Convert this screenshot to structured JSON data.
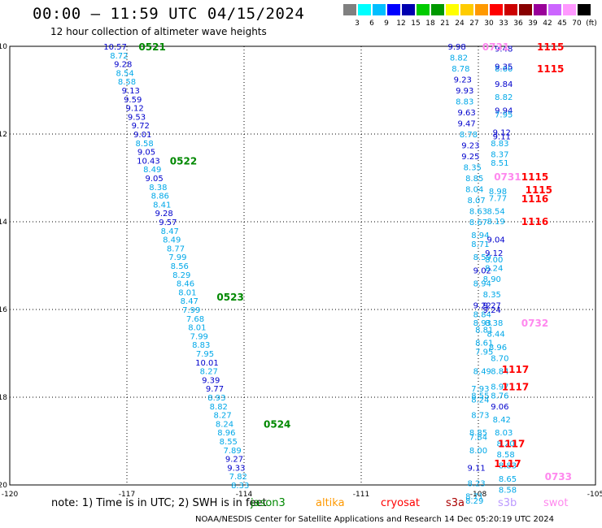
{
  "title": "00:00 – 11:59 UTC 04/15/2024",
  "subtitle": "12 hour collection of altimeter wave heights",
  "colorbar": {
    "colors": [
      "#808080",
      "#00ffff",
      "#00bfff",
      "#0000ff",
      "#0000b0",
      "#00cc00",
      "#009900",
      "#ffff00",
      "#ffcc00",
      "#ff9900",
      "#ff0000",
      "#cc0000",
      "#880000",
      "#990099",
      "#cc66ff",
      "#ff99ff",
      "#000000"
    ],
    "labels": [
      "3",
      "6",
      "9",
      "12",
      "15",
      "18",
      "21",
      "24",
      "27",
      "30",
      "33",
      "36",
      "39",
      "42",
      "45",
      "70",
      "(ft)"
    ]
  },
  "note": "note: 1) Time is in UTC; 2) SWH is in feet",
  "legend": [
    {
      "name": "jason3",
      "color": "#008800"
    },
    {
      "name": "altika",
      "color": "#ff9900"
    },
    {
      "name": "cryosat",
      "color": "#ff0000"
    },
    {
      "name": "s3a",
      "color": "#aa0000"
    },
    {
      "name": "s3b",
      "color": "#bb99ff"
    },
    {
      "name": "swot",
      "color": "#ff88ee"
    }
  ],
  "footer": "NOAA/NESDIS Center for Satellite Applications and Research    14 Dec 05:20:19 UTC 2024",
  "chart_data": {
    "type": "scatter",
    "xlabel": "",
    "ylabel": "",
    "xlim": [
      -120,
      -105
    ],
    "ylim": [
      -20,
      -10
    ],
    "x_ticks": [
      -120,
      -117,
      -114,
      -111,
      -108,
      -105
    ],
    "y_ticks": [
      -10,
      -12,
      -14,
      -16,
      -18,
      -20
    ],
    "x_tick_labels": [
      "-120",
      "-117",
      "-114",
      "-111",
      "-108",
      "-105"
    ],
    "y_tick_labels": [
      "-10",
      "-12",
      "-14",
      "-16",
      "-18",
      "-20"
    ],
    "grid": true,
    "passes": [
      {
        "label": "0521",
        "x": -116.7,
        "y": -10.0,
        "color": "#008800"
      },
      {
        "label": "0522",
        "x": -115.9,
        "y": -12.6,
        "color": "#008800"
      },
      {
        "label": "0523",
        "x": -114.7,
        "y": -15.7,
        "color": "#008800"
      },
      {
        "label": "0524",
        "x": -113.5,
        "y": -18.6,
        "color": "#008800"
      },
      {
        "label": "0731",
        "x": -107.9,
        "y": -10.0,
        "color": "#ff88ee"
      },
      {
        "label": "1115",
        "x": -106.5,
        "y": -10.0,
        "color": "#ff0000"
      },
      {
        "label": "1115",
        "x": -106.5,
        "y": -10.5,
        "color": "#ff0000"
      },
      {
        "label": "0731",
        "x": -107.6,
        "y": -12.96,
        "color": "#ff88ee"
      },
      {
        "label": "1115",
        "x": -106.9,
        "y": -12.96,
        "color": "#ff0000"
      },
      {
        "label": "1115",
        "x": -106.8,
        "y": -13.26,
        "color": "#ff0000"
      },
      {
        "label": "1116",
        "x": -106.9,
        "y": -13.46,
        "color": "#ff0000"
      },
      {
        "label": "1116",
        "x": -106.9,
        "y": -13.98,
        "color": "#ff0000"
      },
      {
        "label": "0732",
        "x": -106.9,
        "y": -16.3,
        "color": "#ff88ee"
      },
      {
        "label": "1117",
        "x": -107.4,
        "y": -17.35,
        "color": "#ff0000"
      },
      {
        "label": "1117",
        "x": -107.4,
        "y": -17.75,
        "color": "#ff0000"
      },
      {
        "label": "1117",
        "x": -107.5,
        "y": -19.05,
        "color": "#ff0000"
      },
      {
        "label": "1117",
        "x": -107.6,
        "y": -19.5,
        "color": "#ff0000"
      },
      {
        "label": "0733",
        "x": -106.3,
        "y": -19.8,
        "color": "#ff88ee"
      }
    ],
    "series": [
      {
        "name": "jason3",
        "points": [
          {
            "x": -117.3,
            "y": -10.0,
            "v": "10.57"
          },
          {
            "x": -117.2,
            "y": -10.2,
            "v": "8.72"
          },
          {
            "x": -117.1,
            "y": -10.4,
            "v": "9.28"
          },
          {
            "x": -117.05,
            "y": -10.6,
            "v": "8.54"
          },
          {
            "x": -117.0,
            "y": -10.8,
            "v": "8.58"
          },
          {
            "x": -116.9,
            "y": -11.0,
            "v": "9.13"
          },
          {
            "x": -116.85,
            "y": -11.2,
            "v": "9.59"
          },
          {
            "x": -116.8,
            "y": -11.4,
            "v": "9.12"
          },
          {
            "x": -116.75,
            "y": -11.6,
            "v": "9.53"
          },
          {
            "x": -116.65,
            "y": -11.8,
            "v": "9.72"
          },
          {
            "x": -116.6,
            "y": -12.0,
            "v": "9.01"
          },
          {
            "x": -116.55,
            "y": -12.2,
            "v": "8.58"
          },
          {
            "x": -116.5,
            "y": -12.4,
            "v": "9.05"
          },
          {
            "x": -116.45,
            "y": -12.6,
            "v": "10.43"
          },
          {
            "x": -116.35,
            "y": -12.8,
            "v": "8.49"
          },
          {
            "x": -116.3,
            "y": -13.0,
            "v": "9.05"
          },
          {
            "x": -116.2,
            "y": -13.2,
            "v": "8.38"
          },
          {
            "x": -116.15,
            "y": -13.4,
            "v": "8.86"
          },
          {
            "x": -116.1,
            "y": -13.6,
            "v": "8.41"
          },
          {
            "x": -116.05,
            "y": -13.8,
            "v": "9.28"
          },
          {
            "x": -115.95,
            "y": -14.0,
            "v": "9.57"
          },
          {
            "x": -115.9,
            "y": -14.2,
            "v": "8.47"
          },
          {
            "x": -115.85,
            "y": -14.4,
            "v": "8.49"
          },
          {
            "x": -115.75,
            "y": -14.6,
            "v": "8.77"
          },
          {
            "x": -115.7,
            "y": -14.8,
            "v": "7.99"
          },
          {
            "x": -115.65,
            "y": -15.0,
            "v": "8.56"
          },
          {
            "x": -115.6,
            "y": -15.2,
            "v": "8.29"
          },
          {
            "x": -115.5,
            "y": -15.4,
            "v": "8.46"
          },
          {
            "x": -115.45,
            "y": -15.6,
            "v": "8.01"
          },
          {
            "x": -115.4,
            "y": -15.8,
            "v": "8.47"
          },
          {
            "x": -115.35,
            "y": -16.0,
            "v": "7.99"
          },
          {
            "x": -115.25,
            "y": -16.2,
            "v": "7.68"
          },
          {
            "x": -115.2,
            "y": -16.4,
            "v": "8.01"
          },
          {
            "x": -115.15,
            "y": -16.6,
            "v": "7.99"
          },
          {
            "x": -115.1,
            "y": -16.8,
            "v": "8.83"
          },
          {
            "x": -115.0,
            "y": -17.0,
            "v": "7.95"
          },
          {
            "x": -114.95,
            "y": -17.2,
            "v": "10.01"
          },
          {
            "x": -114.9,
            "y": -17.4,
            "v": "8.27"
          },
          {
            "x": -114.85,
            "y": -17.6,
            "v": "9.39"
          },
          {
            "x": -114.75,
            "y": -17.8,
            "v": "9.77"
          },
          {
            "x": -114.7,
            "y": -18.0,
            "v": "8.93"
          },
          {
            "x": -114.65,
            "y": -18.2,
            "v": "8.82"
          },
          {
            "x": -114.55,
            "y": -18.4,
            "v": "8.27"
          },
          {
            "x": -114.5,
            "y": -18.6,
            "v": "8.24"
          },
          {
            "x": -114.45,
            "y": -18.8,
            "v": "8.96"
          },
          {
            "x": -114.4,
            "y": -19.0,
            "v": "8.55"
          },
          {
            "x": -114.3,
            "y": -19.2,
            "v": "7.89"
          },
          {
            "x": -114.25,
            "y": -19.4,
            "v": "9.27"
          },
          {
            "x": -114.2,
            "y": -19.6,
            "v": "9.33"
          },
          {
            "x": -114.15,
            "y": -19.8,
            "v": "7.82"
          },
          {
            "x": -114.1,
            "y": -20.0,
            "v": "8.33"
          }
        ]
      },
      {
        "name": "swot-left",
        "points": [
          {
            "x": -108.55,
            "y": -10.0,
            "v": "9.98"
          },
          {
            "x": -108.5,
            "y": -10.25,
            "v": "8.82"
          },
          {
            "x": -108.45,
            "y": -10.5,
            "v": "8.78"
          },
          {
            "x": -108.4,
            "y": -10.75,
            "v": "9.23"
          },
          {
            "x": -108.35,
            "y": -11.0,
            "v": "9.93"
          },
          {
            "x": -108.35,
            "y": -11.25,
            "v": "8.83"
          },
          {
            "x": -108.3,
            "y": -11.5,
            "v": "9.63"
          },
          {
            "x": -108.3,
            "y": -11.75,
            "v": "9.47"
          },
          {
            "x": -108.25,
            "y": -12.0,
            "v": "8.78"
          },
          {
            "x": -108.2,
            "y": -12.25,
            "v": "9.23"
          },
          {
            "x": -108.2,
            "y": -12.5,
            "v": "9.25"
          },
          {
            "x": -108.15,
            "y": -12.75,
            "v": "8.35"
          },
          {
            "x": -108.1,
            "y": -13.0,
            "v": "8.85"
          },
          {
            "x": -108.1,
            "y": -13.25,
            "v": "8.04"
          },
          {
            "x": -108.05,
            "y": -13.5,
            "v": "8.07"
          },
          {
            "x": -108.0,
            "y": -13.75,
            "v": "8.63"
          },
          {
            "x": -108.0,
            "y": -14.0,
            "v": "8.67"
          },
          {
            "x": -107.95,
            "y": -14.3,
            "v": "8.94"
          },
          {
            "x": -107.95,
            "y": -14.5,
            "v": "8.71"
          },
          {
            "x": -107.9,
            "y": -14.8,
            "v": "8.59"
          },
          {
            "x": -107.9,
            "y": -15.1,
            "v": "9.02"
          },
          {
            "x": -107.9,
            "y": -15.4,
            "v": "8.94"
          },
          {
            "x": -107.9,
            "y": -15.9,
            "v": "9.22"
          },
          {
            "x": -107.9,
            "y": -16.1,
            "v": "8.84"
          },
          {
            "x": -107.9,
            "y": -16.3,
            "v": "8.93"
          },
          {
            "x": -107.85,
            "y": -16.45,
            "v": "8.81"
          },
          {
            "x": -107.85,
            "y": -16.75,
            "v": "8.61"
          },
          {
            "x": -107.85,
            "y": -16.95,
            "v": "7.95"
          },
          {
            "x": -107.9,
            "y": -17.4,
            "v": "8.49"
          },
          {
            "x": -107.95,
            "y": -17.8,
            "v": "7.93"
          },
          {
            "x": -107.95,
            "y": -17.95,
            "v": "8.55"
          },
          {
            "x": -107.95,
            "y": -18.05,
            "v": "8.24"
          },
          {
            "x": -107.95,
            "y": -18.4,
            "v": "8.73"
          },
          {
            "x": -108.0,
            "y": -18.8,
            "v": "8.85"
          },
          {
            "x": -108.0,
            "y": -18.9,
            "v": "7.84"
          },
          {
            "x": -108.0,
            "y": -19.2,
            "v": "8.00"
          },
          {
            "x": -108.05,
            "y": -19.6,
            "v": "9.11"
          },
          {
            "x": -108.05,
            "y": -19.95,
            "v": "8.23"
          },
          {
            "x": -108.1,
            "y": -20.25,
            "v": "8.71"
          },
          {
            "x": -108.1,
            "y": -20.35,
            "v": "8.29"
          }
        ]
      },
      {
        "name": "swot-right",
        "points": [
          {
            "x": -107.35,
            "y": -10.05,
            "v": "9.48"
          },
          {
            "x": -107.35,
            "y": -10.5,
            "v": "8.60"
          },
          {
            "x": -107.35,
            "y": -10.45,
            "v": "9.35"
          },
          {
            "x": -107.35,
            "y": -10.85,
            "v": "9.84"
          },
          {
            "x": -107.35,
            "y": -11.15,
            "v": "8.82"
          },
          {
            "x": -107.35,
            "y": -11.45,
            "v": "9.94"
          },
          {
            "x": -107.35,
            "y": -11.55,
            "v": "7.95"
          },
          {
            "x": -107.4,
            "y": -11.95,
            "v": "9.12"
          },
          {
            "x": -107.4,
            "y": -12.05,
            "v": "9.11"
          },
          {
            "x": -107.45,
            "y": -12.2,
            "v": "8.83"
          },
          {
            "x": -107.45,
            "y": -12.45,
            "v": "8.37"
          },
          {
            "x": -107.45,
            "y": -12.65,
            "v": "8.51"
          },
          {
            "x": -107.5,
            "y": -13.3,
            "v": "8.98"
          },
          {
            "x": -107.5,
            "y": -13.45,
            "v": "7.77"
          },
          {
            "x": -107.55,
            "y": -13.75,
            "v": "8.54"
          },
          {
            "x": -107.55,
            "y": -13.98,
            "v": "8.19"
          },
          {
            "x": -107.55,
            "y": -14.4,
            "v": "9.04"
          },
          {
            "x": -107.6,
            "y": -14.7,
            "v": "9.12"
          },
          {
            "x": -107.6,
            "y": -14.85,
            "v": "8.00"
          },
          {
            "x": -107.6,
            "y": -15.05,
            "v": "8.24"
          },
          {
            "x": -107.65,
            "y": -15.3,
            "v": "8.90"
          },
          {
            "x": -107.65,
            "y": -15.65,
            "v": "8.35"
          },
          {
            "x": -107.65,
            "y": -15.9,
            "v": "9.27"
          },
          {
            "x": -107.65,
            "y": -16.0,
            "v": "9.24"
          },
          {
            "x": -107.6,
            "y": -16.3,
            "v": "8.38"
          },
          {
            "x": -107.55,
            "y": -16.55,
            "v": "8.44"
          },
          {
            "x": -107.5,
            "y": -16.85,
            "v": "8.96"
          },
          {
            "x": -107.45,
            "y": -17.1,
            "v": "8.70"
          },
          {
            "x": -107.45,
            "y": -17.4,
            "v": "8.84"
          },
          {
            "x": -107.45,
            "y": -17.75,
            "v": "8.97"
          },
          {
            "x": -107.45,
            "y": -17.95,
            "v": "8.76"
          },
          {
            "x": -107.45,
            "y": -18.2,
            "v": "9.06"
          },
          {
            "x": -107.4,
            "y": -18.5,
            "v": "8.42"
          },
          {
            "x": -107.35,
            "y": -18.8,
            "v": "8.03"
          },
          {
            "x": -107.3,
            "y": -19.05,
            "v": "8.20"
          },
          {
            "x": -107.3,
            "y": -19.3,
            "v": "8.58"
          },
          {
            "x": -107.25,
            "y": -19.55,
            "v": "8.83"
          },
          {
            "x": -107.25,
            "y": -19.85,
            "v": "8.65"
          },
          {
            "x": -107.25,
            "y": -20.1,
            "v": "8.58"
          }
        ]
      }
    ]
  }
}
